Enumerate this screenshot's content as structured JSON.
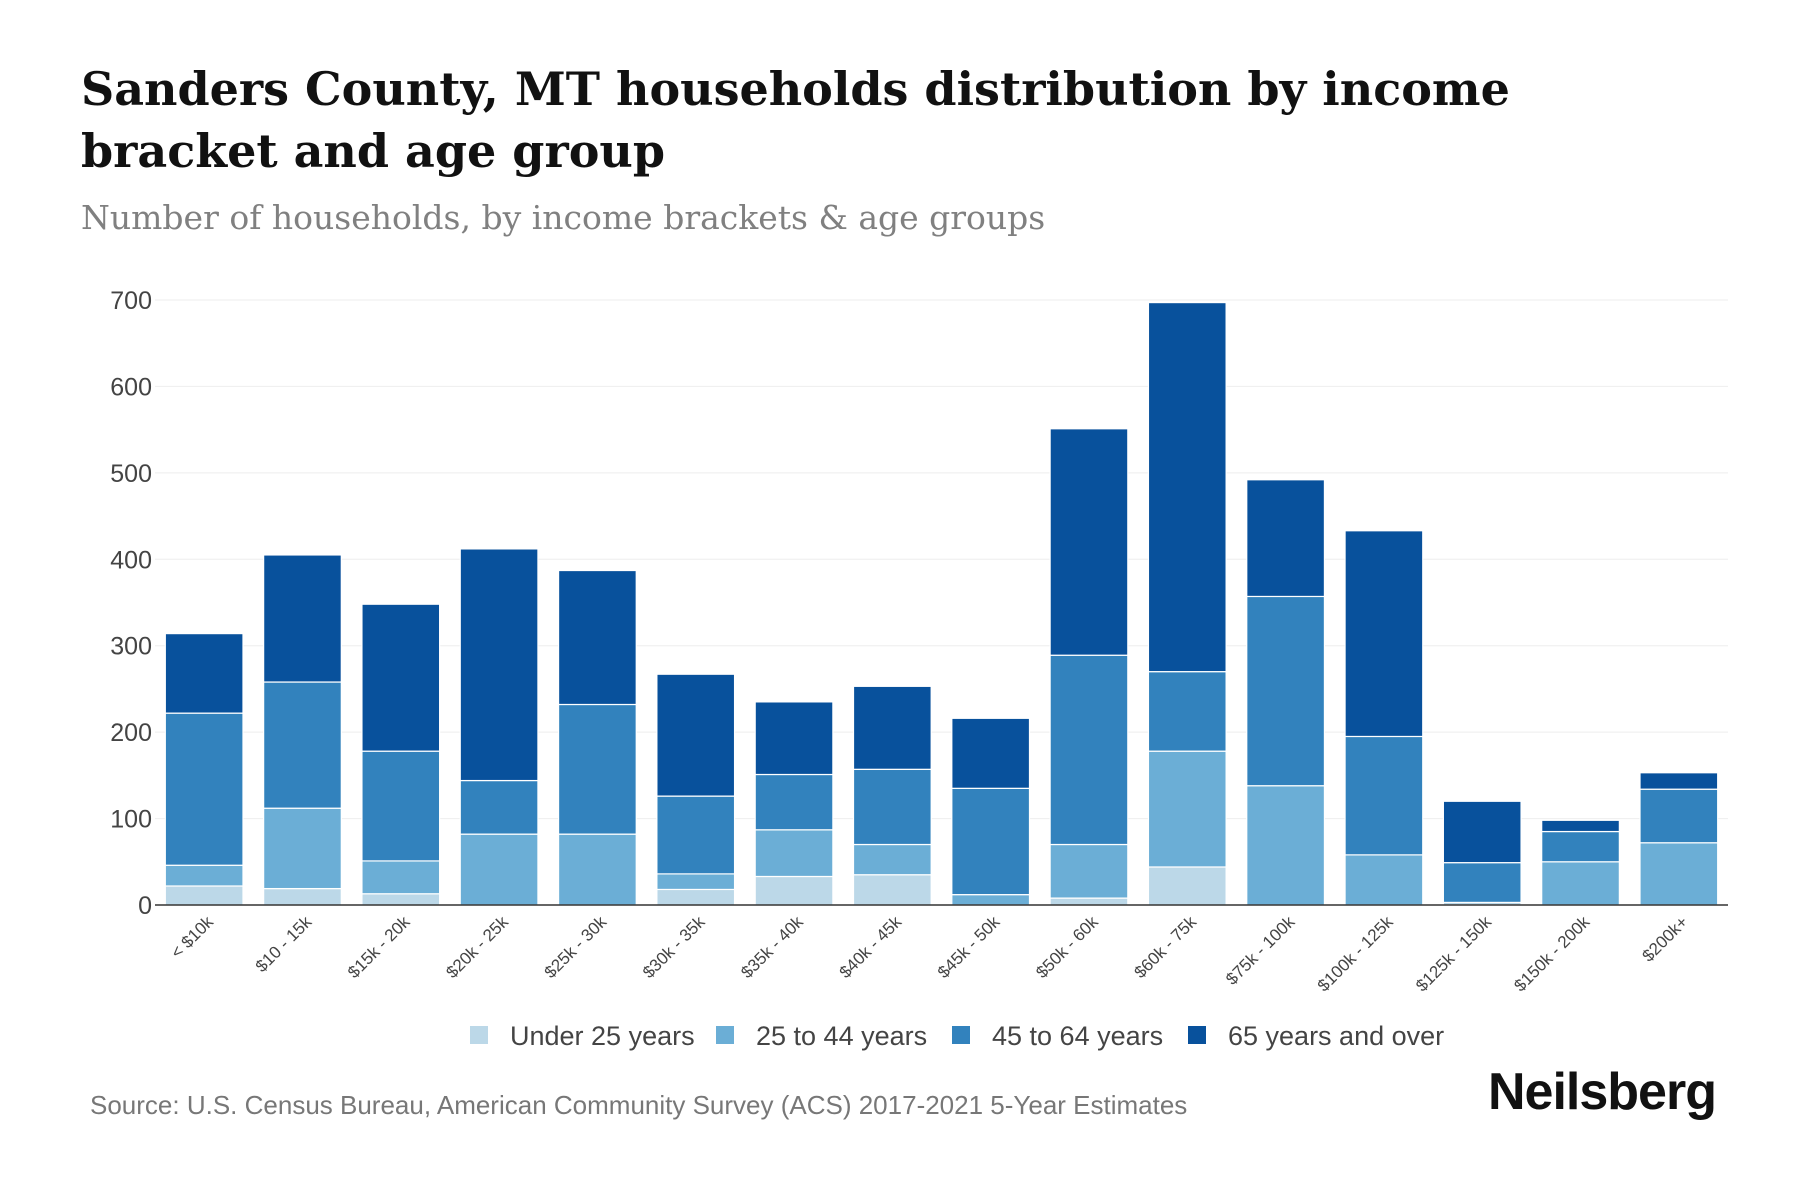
{
  "title": "Sanders County, MT households distribution by income bracket and age group",
  "subtitle": "Number of households, by income brackets & age groups",
  "source": "Source: U.S. Census Bureau, American Community Survey (ACS) 2017-2021 5-Year Estimates",
  "brand": "Neilsberg",
  "colors": {
    "under_25": "#bcd8e8",
    "age_25_44": "#6baed6",
    "age_45_64": "#3282bd",
    "age_65_plus": "#08519c",
    "grid": "#eeeeee",
    "axis": "#333333",
    "tick_text": "#444444"
  },
  "chart_data": {
    "type": "bar",
    "stacked": true,
    "title": "Sanders County, MT households distribution by income bracket and age group",
    "subtitle": "Number of households, by income brackets & age groups",
    "xlabel": "",
    "ylabel": "",
    "ylim": [
      0,
      700
    ],
    "yticks": [
      0,
      100,
      200,
      300,
      400,
      500,
      600,
      700
    ],
    "grid": true,
    "legend_position": "bottom",
    "categories": [
      "< $10k",
      "$10 - 15k",
      "$15k - 20k",
      "$20k - 25k",
      "$25k - 30k",
      "$30k - 35k",
      "$35k - 40k",
      "$40k - 45k",
      "$45k - 50k",
      "$50k - 60k",
      "$60k - 75k",
      "$75k - 100k",
      "$100k - 125k",
      "$125k - 150k",
      "$150k - 200k",
      "$200k+"
    ],
    "series": [
      {
        "name": "Under 25 years",
        "color_key": "under_25",
        "values": [
          22,
          19,
          13,
          0,
          0,
          18,
          33,
          35,
          0,
          8,
          44,
          0,
          0,
          3,
          0,
          0
        ]
      },
      {
        "name": "25 to 44 years",
        "color_key": "age_25_44",
        "values": [
          24,
          93,
          38,
          82,
          82,
          18,
          54,
          35,
          12,
          62,
          134,
          138,
          58,
          0,
          50,
          72
        ]
      },
      {
        "name": "45 to 64 years",
        "color_key": "age_45_64",
        "values": [
          176,
          146,
          127,
          62,
          150,
          90,
          64,
          87,
          123,
          219,
          92,
          219,
          137,
          46,
          35,
          62
        ]
      },
      {
        "name": "65 years and over",
        "color_key": "age_65_plus",
        "values": [
          92,
          147,
          170,
          268,
          155,
          141,
          84,
          96,
          81,
          262,
          427,
          135,
          238,
          71,
          13,
          19
        ]
      }
    ]
  }
}
